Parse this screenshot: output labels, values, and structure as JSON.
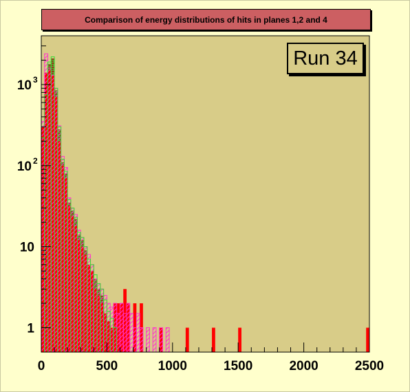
{
  "chart_data": {
    "type": "bar",
    "title": "Comparison of energy distributions of hits in planes 1,2 and 4",
    "annotation": "Run 34",
    "x_scale": "linear",
    "y_scale": "log",
    "xlim": [
      0,
      2500
    ],
    "ylim": [
      0.5,
      4000
    ],
    "xticks": [
      "0",
      "500",
      "1000",
      "1500",
      "2000",
      "2500"
    ],
    "yticks": [
      {
        "value": 1,
        "base": "1",
        "exp": ""
      },
      {
        "value": 10,
        "base": "10",
        "exp": ""
      },
      {
        "value": 100,
        "base": "10",
        "exp": "2"
      },
      {
        "value": 1000,
        "base": "10",
        "exp": "3"
      }
    ],
    "bin_width": 25,
    "grid": false,
    "plot_background": "#d8cc88",
    "series": [
      {
        "style": "brick fill (brown with green)",
        "color": "#9a3a1a",
        "x": [
          0,
          25,
          50,
          75,
          100,
          125,
          150,
          175,
          200,
          225,
          250,
          275,
          300,
          325,
          350,
          375,
          400,
          425,
          450,
          475,
          500,
          525
        ],
        "values": [
          200,
          700,
          1800,
          2100,
          850,
          280,
          110,
          80,
          35,
          28,
          22,
          14,
          12,
          9,
          6,
          5,
          4,
          3,
          2.5,
          1.5,
          1.2,
          1
        ]
      },
      {
        "style": "solid red",
        "color": "#ff0000",
        "x": [
          0,
          25,
          50,
          75,
          100,
          125,
          150,
          175,
          200,
          225,
          250,
          275,
          300,
          325,
          350,
          375,
          400,
          425,
          450,
          475,
          500,
          525,
          550,
          575,
          600,
          625,
          650,
          700,
          750,
          900,
          1100,
          1300,
          1500,
          2475
        ],
        "values": [
          300,
          1400,
          1500,
          1300,
          700,
          200,
          100,
          70,
          32,
          24,
          18,
          12,
          10,
          8,
          6,
          5,
          3,
          2.5,
          2,
          1.5,
          1.2,
          1,
          2,
          2,
          2,
          3,
          2,
          2,
          2,
          1,
          1,
          1,
          1,
          1
        ]
      },
      {
        "style": "diagonal hatch magenta",
        "color": "#ff33cc",
        "x": [
          0,
          25,
          50,
          75,
          100,
          125,
          150,
          175,
          200,
          225,
          250,
          275,
          300,
          325,
          350,
          375,
          400,
          425,
          450,
          475,
          500,
          525,
          550,
          575,
          600,
          625,
          650,
          675,
          700,
          725,
          750,
          800,
          850,
          900,
          950
        ],
        "values": [
          350,
          2400,
          1600,
          1300,
          900,
          310,
          130,
          95,
          40,
          30,
          25,
          16,
          13,
          10,
          8,
          6,
          4,
          3.5,
          3,
          2.5,
          2,
          1.8,
          2,
          1.5,
          2,
          1.5,
          2,
          1.5,
          1,
          1.5,
          1,
          1,
          1,
          1,
          1
        ]
      },
      {
        "style": "green outline",
        "color": "#33dd33",
        "x": [
          0,
          25,
          50,
          75,
          100,
          125,
          150,
          175,
          200,
          225,
          250,
          275,
          300,
          325,
          350,
          375,
          400,
          425,
          450,
          475,
          500,
          525,
          550
        ],
        "values": [
          220,
          750,
          1900,
          2200,
          900,
          300,
          120,
          85,
          38,
          30,
          23,
          15,
          13,
          10,
          7,
          6,
          4.5,
          3.5,
          3,
          2.2,
          1.6,
          1.3,
          1
        ]
      }
    ]
  }
}
